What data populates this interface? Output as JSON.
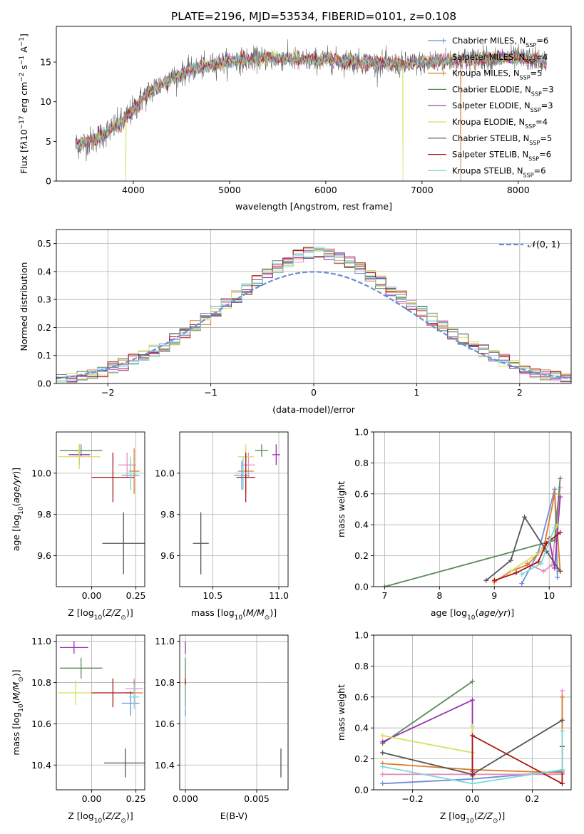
{
  "figure_title": "PLATE=2196, MJD=53534, FIBERID=0101, z=0.108",
  "colors": {
    "Chabrier MILES": "#6b8fd6",
    "Salpeter MILES": "#e68fc0",
    "Kroupa MILES": "#dd7a2a",
    "Chabrier ELODIE": "#5a8a5a",
    "Salpeter ELODIE": "#9b2fb0",
    "Kroupa ELODIE": "#d4e05a",
    "Chabrier STELIB": "#555555",
    "Salpeter STELIB": "#aa1515",
    "Kroupa STELIB": "#80d8d8"
  },
  "chart_data": [
    {
      "id": "spectrum",
      "type": "line",
      "xlabel": "wavelength [Angstrom, rest frame]",
      "ylabel": "Flux [fλ10^-17 erg cm^-2 s^-1 A^-1]",
      "xlim": [
        3200,
        8550
      ],
      "ylim": [
        0,
        19.5
      ],
      "xticks": [
        4000,
        5000,
        6000,
        7000,
        8000
      ],
      "yticks": [
        0,
        5,
        10,
        15
      ],
      "grid": false,
      "legend_position": "top-right",
      "legend": [
        {
          "model": "Chabrier MILES",
          "label": "Chabrier MILES, N",
          "sub": "SSP",
          "suffix": "=6"
        },
        {
          "model": "Salpeter MILES",
          "label": "Salpeter MILES, N",
          "sub": "SSP",
          "suffix": "=4"
        },
        {
          "model": "Kroupa MILES",
          "label": "Kroupa MILES, N",
          "sub": "SSP",
          "suffix": "=5"
        },
        {
          "model": "Chabrier ELODIE",
          "label": "Chabrier ELODIE, N",
          "sub": "SSP",
          "suffix": "=3"
        },
        {
          "model": "Salpeter ELODIE",
          "label": "Salpeter ELODIE, N",
          "sub": "SSP",
          "suffix": "=3"
        },
        {
          "model": "Kroupa ELODIE",
          "label": "Kroupa ELODIE, N",
          "sub": "SSP",
          "suffix": "=4"
        },
        {
          "model": "Chabrier STELIB",
          "label": "Chabrier STELIB, N",
          "sub": "SSP",
          "suffix": "=5"
        },
        {
          "model": "Salpeter STELIB",
          "label": "Salpeter STELIB, N",
          "sub": "SSP",
          "suffix": "=6"
        },
        {
          "model": "Kroupa STELIB",
          "label": "Kroupa STELIB, N",
          "sub": "SSP",
          "suffix": "=6"
        }
      ],
      "continuum": {
        "x": [
          3400,
          3500,
          3600,
          3700,
          3800,
          3900,
          4000,
          4100,
          4200,
          4300,
          4400,
          4500,
          4600,
          4700,
          4800,
          4900,
          5000,
          5200,
          5400,
          5600,
          5800,
          6000,
          6200,
          6400,
          6600,
          6800,
          7000,
          7200,
          7400,
          7600,
          7800,
          8000,
          8200,
          8300
        ],
        "y": [
          4.6,
          4.8,
          5.3,
          6.0,
          6.8,
          7.6,
          9.0,
          10.5,
          11.5,
          12.3,
          13.0,
          13.5,
          14.0,
          14.3,
          14.6,
          14.9,
          15.1,
          15.3,
          15.5,
          15.4,
          15.2,
          15.3,
          15.1,
          15.0,
          14.8,
          14.7,
          14.9,
          15.2,
          15.3,
          15.4,
          15.5,
          15.5,
          15.3,
          15.0
        ]
      },
      "dropouts": [
        {
          "model": "Kroupa ELODIE",
          "x": 3920
        },
        {
          "model": "Kroupa ELODIE",
          "x": 6800
        },
        {
          "model": "Kroupa MILES",
          "x": 7400
        }
      ]
    },
    {
      "id": "residual_hist",
      "type": "bar",
      "xlabel": "(data-model)/error",
      "ylabel": "Normed distribution",
      "xlim": [
        -2.5,
        2.5
      ],
      "ylim": [
        0,
        0.55
      ],
      "xticks": [
        -2,
        -1,
        0,
        1,
        2
      ],
      "yticks": [
        0.0,
        0.1,
        0.2,
        0.3,
        0.4,
        0.5
      ],
      "grid": true,
      "legend_position": "top-right",
      "legend": [
        "𝒩(0, 1)"
      ],
      "bin_width": 0.1
    },
    {
      "id": "age_vs_Z",
      "type": "scatter",
      "xlabel": "Z [log10(Z/Z⊙)]",
      "ylabel": "age [log10(age/yr)]",
      "xlim": [
        -0.2,
        0.3
      ],
      "ylim": [
        9.45,
        10.2
      ],
      "xticks": [
        0.0,
        0.25
      ],
      "yticks": [
        9.6,
        9.8,
        10.0
      ],
      "grid": true,
      "points": [
        {
          "model": "Chabrier MILES",
          "x": 0.22,
          "y": 9.99,
          "xerr": 0.05,
          "yerr": 0.07
        },
        {
          "model": "Salpeter MILES",
          "x": 0.2,
          "y": 10.04,
          "xerr": 0.05,
          "yerr": 0.06
        },
        {
          "model": "Kroupa MILES",
          "x": 0.24,
          "y": 10.01,
          "xerr": 0.03,
          "yerr": 0.11
        },
        {
          "model": "Chabrier ELODIE",
          "x": -0.06,
          "y": 10.11,
          "xerr": 0.12,
          "yerr": 0.03
        },
        {
          "model": "Salpeter ELODIE",
          "x": -0.07,
          "y": 10.09,
          "xerr": 0.06,
          "yerr": 0.05
        },
        {
          "model": "Kroupa ELODIE",
          "x": -0.07,
          "y": 10.08,
          "xerr": 0.12,
          "yerr": 0.06
        },
        {
          "model": "Chabrier STELIB",
          "x": 0.18,
          "y": 9.66,
          "xerr": 0.12,
          "yerr": 0.15
        },
        {
          "model": "Salpeter STELIB",
          "x": 0.12,
          "y": 9.98,
          "xerr": 0.12,
          "yerr": 0.12
        },
        {
          "model": "Kroupa STELIB",
          "x": 0.22,
          "y": 10.0,
          "xerr": 0.03,
          "yerr": 0.08
        }
      ]
    },
    {
      "id": "age_vs_mass",
      "type": "scatter",
      "xlabel": "mass [log10(M/M⊙)]",
      "ylabel": "",
      "xlim": [
        10.25,
        11.07
      ],
      "ylim": [
        9.45,
        10.2
      ],
      "xticks": [
        10.5,
        11.0
      ],
      "yticks": [
        9.6,
        9.8,
        10.0
      ],
      "grid": true,
      "points": [
        {
          "model": "Chabrier MILES",
          "x": 10.72,
          "y": 9.99,
          "xerr": 0.06,
          "yerr": 0.07
        },
        {
          "model": "Salpeter MILES",
          "x": 10.77,
          "y": 10.04,
          "xerr": 0.05,
          "yerr": 0.06
        },
        {
          "model": "Kroupa MILES",
          "x": 10.75,
          "y": 10.01,
          "xerr": 0.06,
          "yerr": 0.11
        },
        {
          "model": "Chabrier ELODIE",
          "x": 10.87,
          "y": 10.11,
          "xerr": 0.05,
          "yerr": 0.03
        },
        {
          "model": "Salpeter ELODIE",
          "x": 10.98,
          "y": 10.09,
          "xerr": 0.03,
          "yerr": 0.05
        },
        {
          "model": "Kroupa ELODIE",
          "x": 10.75,
          "y": 10.08,
          "xerr": 0.06,
          "yerr": 0.06
        },
        {
          "model": "Chabrier STELIB",
          "x": 10.41,
          "y": 9.66,
          "xerr": 0.06,
          "yerr": 0.15
        },
        {
          "model": "Salpeter STELIB",
          "x": 10.75,
          "y": 9.98,
          "xerr": 0.07,
          "yerr": 0.12
        },
        {
          "model": "Kroupa STELIB",
          "x": 10.73,
          "y": 10.0,
          "xerr": 0.06,
          "yerr": 0.08
        }
      ]
    },
    {
      "id": "weight_vs_age",
      "type": "line",
      "xlabel": "age [log10(age/yr)]",
      "ylabel": "mass weight",
      "xlim": [
        6.8,
        10.4
      ],
      "ylim": [
        0,
        1.0
      ],
      "xticks": [
        7,
        8,
        9,
        10
      ],
      "yticks": [
        0.0,
        0.2,
        0.4,
        0.6,
        0.8,
        1.0
      ],
      "grid": true,
      "series": [
        {
          "model": "Chabrier MILES",
          "x": [
            9.5,
            9.8,
            10.1,
            10.15
          ],
          "y": [
            0.02,
            0.22,
            0.63,
            0.06
          ]
        },
        {
          "model": "Salpeter MILES",
          "x": [
            9.6,
            9.9,
            10.05,
            10.2
          ],
          "y": [
            0.15,
            0.1,
            0.14,
            0.64
          ]
        },
        {
          "model": "Kroupa MILES",
          "x": [
            9.0,
            9.3,
            9.6,
            9.9,
            10.1,
            10.2
          ],
          "y": [
            0.03,
            0.1,
            0.14,
            0.25,
            0.6,
            0.1
          ]
        },
        {
          "model": "Chabrier ELODIE",
          "x": [
            7.0,
            10.1,
            10.2
          ],
          "y": [
            0.0,
            0.3,
            0.7
          ]
        },
        {
          "model": "Salpeter ELODIE",
          "x": [
            10.0,
            10.1,
            10.2
          ],
          "y": [
            0.31,
            0.12,
            0.58
          ]
        },
        {
          "model": "Kroupa ELODIE",
          "x": [
            9.3,
            9.9,
            10.15
          ],
          "y": [
            0.1,
            0.24,
            0.4
          ]
        },
        {
          "model": "Chabrier STELIB",
          "x": [
            8.85,
            9.3,
            9.55,
            9.95,
            10.2
          ],
          "y": [
            0.04,
            0.17,
            0.45,
            0.23,
            0.1
          ]
        },
        {
          "model": "Salpeter STELIB",
          "x": [
            9.0,
            9.4,
            9.8,
            9.95,
            10.2
          ],
          "y": [
            0.04,
            0.09,
            0.16,
            0.28,
            0.35
          ]
        },
        {
          "model": "Kroupa STELIB",
          "x": [
            9.5,
            9.85,
            10.1
          ],
          "y": [
            0.08,
            0.15,
            0.38
          ]
        }
      ]
    },
    {
      "id": "mass_vs_Z",
      "type": "scatter",
      "xlabel": "Z [log10(Z/Z⊙)]",
      "ylabel": "mass [log10(M/M⊙)]",
      "xlim": [
        -0.2,
        0.3
      ],
      "ylim": [
        10.28,
        11.03
      ],
      "xticks": [
        0.0,
        0.25
      ],
      "yticks": [
        10.4,
        10.6,
        10.8,
        11.0
      ],
      "grid": true,
      "points": [
        {
          "model": "Chabrier MILES",
          "x": 0.22,
          "y": 10.7,
          "xerr": 0.05,
          "yerr": 0.06
        },
        {
          "model": "Salpeter MILES",
          "x": 0.24,
          "y": 10.77,
          "xerr": 0.05,
          "yerr": 0.05
        },
        {
          "model": "Kroupa MILES",
          "x": 0.24,
          "y": 10.75,
          "xerr": 0.05,
          "yerr": 0.06
        },
        {
          "model": "Chabrier ELODIE",
          "x": -0.06,
          "y": 10.87,
          "xerr": 0.12,
          "yerr": 0.05
        },
        {
          "model": "Salpeter ELODIE",
          "x": -0.1,
          "y": 10.97,
          "xerr": 0.08,
          "yerr": 0.03
        },
        {
          "model": "Kroupa ELODIE",
          "x": -0.09,
          "y": 10.75,
          "xerr": 0.1,
          "yerr": 0.06
        },
        {
          "model": "Chabrier STELIB",
          "x": 0.19,
          "y": 10.41,
          "xerr": 0.12,
          "yerr": 0.07
        },
        {
          "model": "Salpeter STELIB",
          "x": 0.12,
          "y": 10.75,
          "xerr": 0.12,
          "yerr": 0.07
        },
        {
          "model": "Kroupa STELIB",
          "x": 0.24,
          "y": 10.73,
          "xerr": 0.03,
          "yerr": 0.06
        }
      ]
    },
    {
      "id": "mass_vs_ebv",
      "type": "scatter",
      "xlabel": "E(B-V)",
      "ylabel": "",
      "xlim": [
        -0.0004,
        0.0072
      ],
      "ylim": [
        10.28,
        11.03
      ],
      "xticks": [
        0.0,
        0.005
      ],
      "yticks": [
        10.4,
        10.6,
        10.8,
        11.0
      ],
      "grid": true,
      "points": [
        {
          "model": "Chabrier MILES",
          "x": 0.0,
          "y": 10.7,
          "xerr": 0,
          "yerr": 0.06
        },
        {
          "model": "Salpeter MILES",
          "x": 0.0,
          "y": 10.77,
          "xerr": 0,
          "yerr": 0.05
        },
        {
          "model": "Kroupa MILES",
          "x": 0.0,
          "y": 10.75,
          "xerr": 0,
          "yerr": 0.06
        },
        {
          "model": "Chabrier ELODIE",
          "x": 0.0,
          "y": 10.87,
          "xerr": 0,
          "yerr": 0.05
        },
        {
          "model": "Salpeter ELODIE",
          "x": 0.0,
          "y": 10.97,
          "xerr": 0,
          "yerr": 0.03
        },
        {
          "model": "Kroupa ELODIE",
          "x": 0.0,
          "y": 10.75,
          "xerr": 0,
          "yerr": 0.06
        },
        {
          "model": "Chabrier STELIB",
          "x": 0.0067,
          "y": 10.41,
          "xerr": 0,
          "yerr": 0.07
        },
        {
          "model": "Salpeter STELIB",
          "x": 0.0,
          "y": 10.75,
          "xerr": 0,
          "yerr": 0.07
        },
        {
          "model": "Kroupa STELIB",
          "x": 0.0,
          "y": 10.73,
          "xerr": 0,
          "yerr": 0.06
        }
      ]
    },
    {
      "id": "weight_vs_Z",
      "type": "line",
      "xlabel": "Z [log10(Z/Z⊙)]",
      "ylabel": "mass weight",
      "xlim": [
        -0.33,
        0.33
      ],
      "ylim": [
        0,
        1.0
      ],
      "xticks": [
        -0.2,
        0.0,
        0.2
      ],
      "yticks": [
        0.0,
        0.2,
        0.4,
        0.6,
        0.8,
        1.0
      ],
      "grid": true,
      "series": [
        {
          "model": "Chabrier MILES",
          "x": [
            -0.3,
            0.0,
            0.3
          ],
          "y": [
            0.04,
            0.07,
            0.12
          ]
        },
        {
          "model": "Salpeter MILES",
          "x": [
            -0.3,
            0.0,
            0.3,
            0.3
          ],
          "y": [
            0.1,
            0.1,
            0.1,
            0.64
          ]
        },
        {
          "model": "Kroupa MILES",
          "x": [
            -0.3,
            0.0,
            0.3,
            0.3
          ],
          "y": [
            0.17,
            0.13,
            0.11,
            0.6
          ]
        },
        {
          "model": "Chabrier ELODIE",
          "x": [
            -0.3,
            0.0
          ],
          "y": [
            0.3,
            0.7
          ]
        },
        {
          "model": "Salpeter ELODIE",
          "x": [
            -0.3,
            0.0,
            0.0
          ],
          "y": [
            0.31,
            0.58,
            0.12
          ]
        },
        {
          "model": "Kroupa ELODIE",
          "x": [
            -0.3,
            0.0,
            0.0
          ],
          "y": [
            0.35,
            0.24,
            0.41
          ]
        },
        {
          "model": "Chabrier STELIB",
          "x": [
            -0.3,
            0.0,
            0.3
          ],
          "y": [
            0.24,
            0.1,
            0.45
          ]
        },
        {
          "model": "Salpeter STELIB",
          "x": [
            0.0,
            0.0,
            0.3,
            0.3
          ],
          "y": [
            0.09,
            0.35,
            0.04,
            0.28
          ]
        },
        {
          "model": "Kroupa STELIB",
          "x": [
            -0.3,
            0.0,
            0.3,
            0.3
          ],
          "y": [
            0.15,
            0.04,
            0.13,
            0.38
          ]
        }
      ]
    }
  ]
}
